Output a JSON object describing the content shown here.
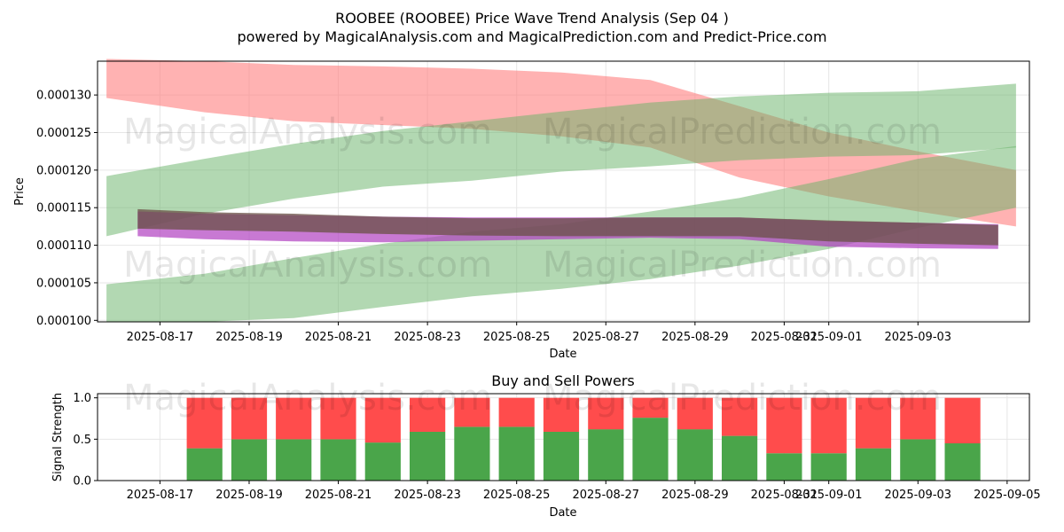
{
  "title_line1": "ROOBEE (ROOBEE) Price Wave Trend Analysis (Sep 04 )",
  "title_line2": "powered by MagicalAnalysis.com and MagicalPrediction.com and Predict-Price.com",
  "watermarks": [
    "MagicalAnalysis.com",
    "MagicalPrediction.com"
  ],
  "colors": {
    "red_band": "#ff7f7f",
    "green_band": "#66b266",
    "buy": "#4aa54a",
    "sell": "#ff4c4c",
    "grid": "#e6e6e6"
  },
  "chart_data": [
    {
      "type": "area",
      "title": "",
      "xlabel": "Date",
      "ylabel": "Price",
      "x_ticks": [
        "2025-08-17",
        "2025-08-19",
        "2025-08-21",
        "2025-08-23",
        "2025-08-25",
        "2025-08-27",
        "2025-08-29",
        "2025-08-31",
        "2025-09-01",
        "2025-09-03"
      ],
      "y_ticks": [
        "0.000100",
        "0.000105",
        "0.000110",
        "0.000115",
        "0.000120",
        "0.000125",
        "0.000130"
      ],
      "xlim": [
        "2025-08-15.6",
        "2025-09-05.5"
      ],
      "ylim": [
        9.98e-05,
        0.0001345
      ],
      "grid": true,
      "bands": [
        {
          "color": "red",
          "x": [
            "2025-08-15.8",
            "2025-08-18",
            "2025-08-20",
            "2025-08-22",
            "2025-08-24",
            "2025-08-26",
            "2025-08-28",
            "2025-08-30",
            "2025-09-01",
            "2025-09-03",
            "2025-09-05.2"
          ],
          "upper": [
            0.0001348,
            0.0001345,
            0.000134,
            0.0001338,
            0.0001335,
            0.000133,
            0.000132,
            0.0001285,
            0.000125,
            0.0001225,
            0.00012
          ],
          "lower": [
            0.0001296,
            0.0001277,
            0.0001265,
            0.000126,
            0.0001255,
            0.0001245,
            0.000123,
            0.000119,
            0.0001165,
            0.0001145,
            0.0001125
          ]
        },
        {
          "color": "green",
          "x": [
            "2025-08-15.8",
            "2025-08-18",
            "2025-08-20",
            "2025-08-22",
            "2025-08-24",
            "2025-08-26",
            "2025-08-28",
            "2025-08-30",
            "2025-09-01",
            "2025-09-03",
            "2025-09-05.2"
          ],
          "upper": [
            0.0001192,
            0.0001215,
            0.0001235,
            0.0001252,
            0.0001265,
            0.0001278,
            0.000129,
            0.0001298,
            0.0001303,
            0.0001305,
            0.0001315
          ],
          "lower": [
            0.0001112,
            0.0001142,
            0.0001162,
            0.0001178,
            0.0001186,
            0.0001198,
            0.0001205,
            0.0001213,
            0.0001218,
            0.000122,
            0.000123
          ]
        },
        {
          "color": "green",
          "x": [
            "2025-08-15.8",
            "2025-08-18",
            "2025-08-20",
            "2025-08-22",
            "2025-08-24",
            "2025-08-26",
            "2025-08-28",
            "2025-08-30",
            "2025-09-01",
            "2025-09-03",
            "2025-09-05.2"
          ],
          "upper": [
            0.0001048,
            0.0001062,
            0.0001083,
            0.0001102,
            0.0001118,
            0.0001128,
            0.0001145,
            0.0001163,
            0.0001188,
            0.0001215,
            0.0001232
          ],
          "lower": [
            9.98e-05,
            9.98e-05,
            0.0001003,
            0.0001018,
            0.0001032,
            0.0001042,
            0.0001055,
            0.0001073,
            0.0001095,
            0.0001123,
            0.000115
          ]
        },
        {
          "color": "purple",
          "x": [
            "2025-08-16.5",
            "2025-08-18",
            "2025-08-20",
            "2025-08-22",
            "2025-08-24",
            "2025-08-26",
            "2025-08-28",
            "2025-08-30",
            "2025-09-01",
            "2025-09-03",
            "2025-09-04.8"
          ],
          "upper": [
            0.0001145,
            0.0001142,
            0.000114,
            0.0001138,
            0.0001137,
            0.0001137,
            0.0001137,
            0.0001137,
            0.0001132,
            0.000113,
            0.0001128
          ],
          "lower": [
            0.0001112,
            0.0001108,
            0.0001105,
            0.0001104,
            0.0001106,
            0.0001108,
            0.000111,
            0.0001108,
            0.0001098,
            0.0001096,
            0.0001095
          ]
        },
        {
          "color": "brown",
          "x": [
            "2025-08-16.5",
            "2025-08-18",
            "2025-08-20",
            "2025-08-22",
            "2025-08-24",
            "2025-08-26",
            "2025-08-28",
            "2025-08-30",
            "2025-09-01",
            "2025-09-03",
            "2025-09-04.8"
          ],
          "upper": [
            0.0001148,
            0.0001144,
            0.0001142,
            0.0001138,
            0.0001136,
            0.0001136,
            0.0001137,
            0.0001137,
            0.0001133,
            0.000113,
            0.0001127
          ],
          "lower": [
            0.0001122,
            0.000112,
            0.0001118,
            0.0001115,
            0.0001113,
            0.0001112,
            0.0001112,
            0.0001112,
            0.0001105,
            0.0001102,
            0.00011
          ]
        }
      ]
    },
    {
      "type": "bar",
      "title": "Buy and Sell Powers",
      "xlabel": "Date",
      "ylabel": "Signal Strength",
      "x_ticks": [
        "2025-08-17",
        "2025-08-19",
        "2025-08-21",
        "2025-08-23",
        "2025-08-25",
        "2025-08-27",
        "2025-08-29",
        "2025-08-31",
        "2025-09-01",
        "2025-09-03",
        "2025-09-05"
      ],
      "y_ticks": [
        "0.0",
        "0.5",
        "1.0"
      ],
      "ylim": [
        0,
        1.05
      ],
      "grid": true,
      "categories": [
        "2025-08-18",
        "2025-08-19",
        "2025-08-20",
        "2025-08-21",
        "2025-08-22",
        "2025-08-23",
        "2025-08-24",
        "2025-08-25",
        "2025-08-26",
        "2025-08-27",
        "2025-08-28",
        "2025-08-29",
        "2025-08-30",
        "2025-08-31",
        "2025-09-01",
        "2025-09-02",
        "2025-09-03",
        "2025-09-04"
      ],
      "series": [
        {
          "name": "",
          "values": [
            0.39,
            0.5,
            0.5,
            0.5,
            0.46,
            0.59,
            0.65,
            0.65,
            0.59,
            0.62,
            0.76,
            0.62,
            0.54,
            0.33,
            0.33,
            0.39,
            0.5,
            0.45
          ]
        },
        {
          "name": "",
          "values": [
            0.61,
            0.5,
            0.5,
            0.5,
            0.54,
            0.41,
            0.35,
            0.35,
            0.41,
            0.38,
            0.24,
            0.38,
            0.46,
            0.67,
            0.67,
            0.61,
            0.5,
            0.55
          ]
        }
      ]
    }
  ]
}
